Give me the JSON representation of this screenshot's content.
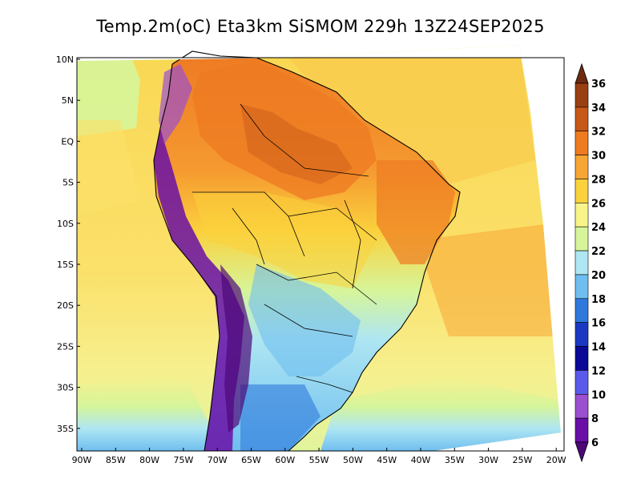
{
  "title": "Temp.2m(oC) Eta3km SiSMOM 229h 13Z24SEP2025",
  "colors": {
    "field_ocean_north": "#fbe16a",
    "field_ocean_south": "#f6f08e"
  },
  "map": {
    "lat_ticks": [
      "10N",
      "5N",
      "EQ",
      "5S",
      "10S",
      "15S",
      "20S",
      "25S",
      "30S",
      "35S"
    ],
    "lon_ticks": [
      "90W",
      "85W",
      "80W",
      "75W",
      "70W",
      "65W",
      "60W",
      "55W",
      "50W",
      "45W",
      "40W",
      "35W",
      "30W",
      "25W",
      "20W"
    ]
  },
  "colorbar": {
    "levels": [
      "36",
      "34",
      "32",
      "30",
      "28",
      "26",
      "24",
      "22",
      "20",
      "18",
      "16",
      "14",
      "12",
      "10",
      "8",
      "6"
    ],
    "colors": [
      "#6e2a10",
      "#9a3f12",
      "#c75818",
      "#ee7a22",
      "#f7a535",
      "#fbd13d",
      "#f8f48a",
      "#d6f59a",
      "#aee6f2",
      "#6fbef0",
      "#2f79dc",
      "#1a38c2",
      "#0a0a96",
      "#5a5aea",
      "#9b50cf",
      "#6a0fa6",
      "#4d0877"
    ]
  }
}
